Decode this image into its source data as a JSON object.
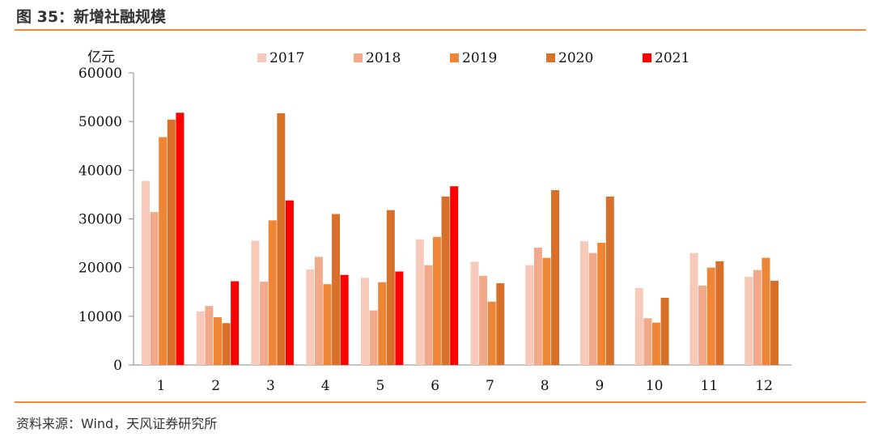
{
  "header": {
    "title": "图 35：新增社融规模"
  },
  "footer": {
    "source": "资料来源：Wind，天风证券研究所"
  },
  "chart_data": {
    "type": "bar",
    "title": "",
    "ylabel": "亿元",
    "xlabel": "",
    "ylim": [
      0,
      60000
    ],
    "yticks": [
      0,
      10000,
      20000,
      30000,
      40000,
      50000,
      60000
    ],
    "categories": [
      "1",
      "2",
      "3",
      "4",
      "5",
      "6",
      "7",
      "8",
      "9",
      "10",
      "11",
      "12"
    ],
    "legend_position": "top",
    "grid": false,
    "series": [
      {
        "name": "2017",
        "color": "#f7c9b8",
        "values": [
          37800,
          11000,
          25500,
          19600,
          17900,
          25800,
          21200,
          20500,
          25400,
          15800,
          23000,
          18100
        ]
      },
      {
        "name": "2018",
        "color": "#f2a98a",
        "values": [
          31400,
          12100,
          17100,
          22200,
          11200,
          20500,
          18300,
          24100,
          23000,
          9600,
          16300,
          19500
        ]
      },
      {
        "name": "2019",
        "color": "#ef8636",
        "values": [
          46800,
          9800,
          29700,
          16600,
          17000,
          26300,
          13000,
          22000,
          25100,
          8700,
          20000,
          22000
        ]
      },
      {
        "name": "2020",
        "color": "#d9702a",
        "values": [
          50400,
          8600,
          51700,
          31000,
          31800,
          34600,
          16800,
          35900,
          34600,
          13800,
          21300,
          17300
        ]
      },
      {
        "name": "2021",
        "color": "#ff0000",
        "values": [
          51800,
          17200,
          33800,
          18500,
          19200,
          36700,
          null,
          null,
          null,
          null,
          null,
          null
        ]
      }
    ]
  }
}
